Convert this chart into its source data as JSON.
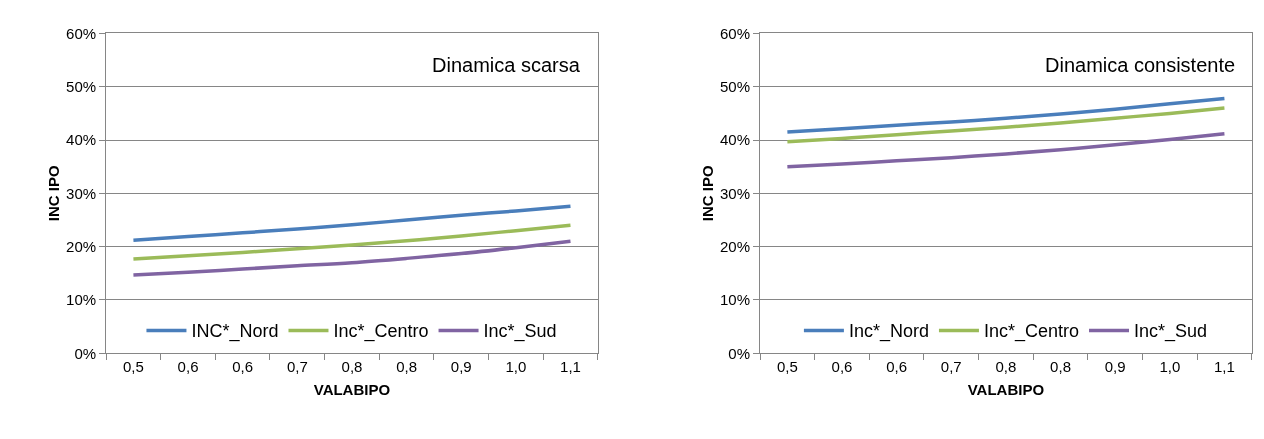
{
  "chart_data": [
    {
      "type": "line",
      "xlabel": "VALABIPO",
      "ylabel": "INC IPO",
      "annotations": [
        "Dinamica scarsa"
      ],
      "categories": [
        "0,5",
        "0,6",
        "0,6",
        "0,7",
        "0,8",
        "0,8",
        "0,9",
        "1,0",
        "1,1"
      ],
      "series": [
        {
          "name": "INC*_Nord",
          "color": "#4a7ebb",
          "values": [
            21.2,
            21.9,
            22.6,
            23.3,
            24.1,
            25.0,
            25.9,
            26.7,
            27.6
          ]
        },
        {
          "name": "Inc*_Centro",
          "color": "#9bbb59",
          "values": [
            17.7,
            18.3,
            18.9,
            19.6,
            20.3,
            21.1,
            22.0,
            23.0,
            24.0
          ]
        },
        {
          "name": "Inc*_Sud",
          "color": "#8064a2",
          "values": [
            14.7,
            15.2,
            15.8,
            16.4,
            17.0,
            17.8,
            18.7,
            19.8,
            21.0
          ]
        }
      ],
      "ylim": [
        0,
        60
      ],
      "yticks": [
        {
          "value": 0,
          "label": "0%"
        },
        {
          "value": 10,
          "label": "10%"
        },
        {
          "value": 20,
          "label": "20%"
        },
        {
          "value": 30,
          "label": "30%"
        },
        {
          "value": 40,
          "label": "40%"
        },
        {
          "value": 50,
          "label": "50%"
        },
        {
          "value": 60,
          "label": "60%"
        }
      ],
      "grid": "y",
      "legend": "bottom",
      "marker": "none",
      "line_style": "solid"
    },
    {
      "type": "line",
      "xlabel": "VALABIPO",
      "ylabel": "INC IPO",
      "annotations": [
        "Dinamica consistente"
      ],
      "categories": [
        "0,5",
        "0,6",
        "0,6",
        "0,7",
        "0,8",
        "0,8",
        "0,9",
        "1,0",
        "1,1"
      ],
      "series": [
        {
          "name": "Inc*_Nord",
          "color": "#4a7ebb",
          "values": [
            41.5,
            42.1,
            42.8,
            43.4,
            44.1,
            44.9,
            45.8,
            46.8,
            47.8
          ]
        },
        {
          "name": "Inc*_Centro",
          "color": "#9bbb59",
          "values": [
            39.7,
            40.3,
            41.0,
            41.7,
            42.4,
            43.2,
            44.1,
            45.0,
            46.0
          ]
        },
        {
          "name": "Inc*_Sud",
          "color": "#8064a2",
          "values": [
            35.0,
            35.5,
            36.1,
            36.7,
            37.4,
            38.2,
            39.1,
            40.1,
            41.2
          ]
        }
      ],
      "ylim": [
        0,
        60
      ],
      "yticks": [
        {
          "value": 0,
          "label": "0%"
        },
        {
          "value": 10,
          "label": "10%"
        },
        {
          "value": 20,
          "label": "20%"
        },
        {
          "value": 30,
          "label": "30%"
        },
        {
          "value": 40,
          "label": "40%"
        },
        {
          "value": 50,
          "label": "50%"
        },
        {
          "value": 60,
          "label": "60%"
        }
      ],
      "grid": "y",
      "legend": "bottom",
      "marker": "none",
      "line_style": "solid"
    }
  ]
}
